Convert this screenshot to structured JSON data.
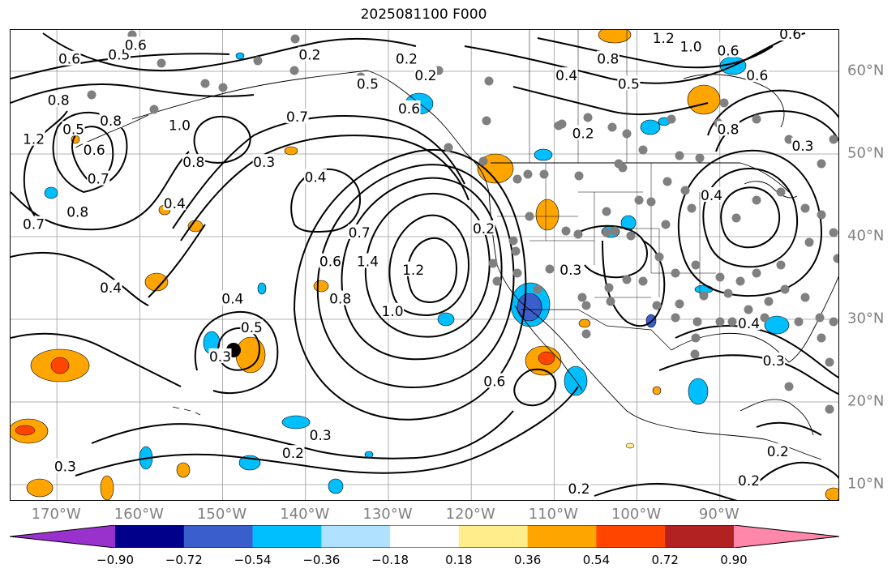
{
  "title": "2025081100 F000",
  "longitude_labels": [
    {
      "deg": -170,
      "text": "170°W"
    },
    {
      "deg": -160,
      "text": "160°W"
    },
    {
      "deg": -150,
      "text": "150°W"
    },
    {
      "deg": -140,
      "text": "140°W"
    },
    {
      "deg": -130,
      "text": "130°W"
    },
    {
      "deg": -120,
      "text": "120°W"
    },
    {
      "deg": -110,
      "text": "110°W"
    },
    {
      "deg": -100,
      "text": "100°W"
    },
    {
      "deg": -90,
      "text": "90°W"
    }
  ],
  "latitude_labels": [
    {
      "deg": 60,
      "text": "60°N"
    },
    {
      "deg": 50,
      "text": "50°N"
    },
    {
      "deg": 40,
      "text": "40°N"
    },
    {
      "deg": 30,
      "text": "30°N"
    },
    {
      "deg": 20,
      "text": "20°N"
    },
    {
      "deg": 10,
      "text": "10°N"
    }
  ],
  "colorbar": {
    "colors": [
      "#9932cc",
      "#00008b",
      "#3a5fcd",
      "#00bfff",
      "#b0e2ff",
      "#ffffff",
      "#ffec8b",
      "#ffa500",
      "#ff4500",
      "#b22222",
      "#ff88aa"
    ],
    "tick_labels": [
      "−0.90",
      "−0.72",
      "−0.54",
      "−0.36",
      "−0.18",
      "0.18",
      "0.36",
      "0.54",
      "0.72",
      "0.90"
    ]
  },
  "contour_labels": [
    {
      "text": "0.6",
      "lon": -168.5,
      "lat": 61.5
    },
    {
      "text": "0.5",
      "lon": -162.5,
      "lat": 62.0
    },
    {
      "text": "0.6",
      "lon": -160.5,
      "lat": 63.2
    },
    {
      "text": "0.8",
      "lon": -169.8,
      "lat": 56.5
    },
    {
      "text": "0.5",
      "lon": -168.0,
      "lat": 53.0
    },
    {
      "text": "0.6",
      "lon": -165.5,
      "lat": 50.5
    },
    {
      "text": "0.8",
      "lon": -163.5,
      "lat": 54.0
    },
    {
      "text": "1.2",
      "lon": -172.8,
      "lat": 51.8
    },
    {
      "text": "0.7",
      "lon": -165.0,
      "lat": 47.0
    },
    {
      "text": "0.8",
      "lon": -167.5,
      "lat": 43.0
    },
    {
      "text": "0.7",
      "lon": -172.8,
      "lat": 41.5
    },
    {
      "text": "1.0",
      "lon": -155.2,
      "lat": 53.5
    },
    {
      "text": "0.8",
      "lon": -153.5,
      "lat": 49.0
    },
    {
      "text": "0.4",
      "lon": -155.8,
      "lat": 44.0
    },
    {
      "text": "0.7",
      "lon": -141.0,
      "lat": 54.5
    },
    {
      "text": "0.3",
      "lon": -145.0,
      "lat": 49.0
    },
    {
      "text": "0.4",
      "lon": -138.8,
      "lat": 47.2
    },
    {
      "text": "0.2",
      "lon": -139.5,
      "lat": 62.0
    },
    {
      "text": "0.5",
      "lon": -132.5,
      "lat": 58.5
    },
    {
      "text": "0.6",
      "lon": -127.5,
      "lat": 55.5
    },
    {
      "text": "0.2",
      "lon": -127.8,
      "lat": 61.5
    },
    {
      "text": "0.2",
      "lon": -125.5,
      "lat": 59.5
    },
    {
      "text": "0.4",
      "lon": -163.5,
      "lat": 33.8
    },
    {
      "text": "0.4",
      "lon": -148.8,
      "lat": 32.5
    },
    {
      "text": "0.5",
      "lon": -146.5,
      "lat": 29.0
    },
    {
      "text": "0.3",
      "lon": -150.3,
      "lat": 25.5
    },
    {
      "text": "0.6",
      "lon": -137.0,
      "lat": 37.0
    },
    {
      "text": "0.8",
      "lon": -135.8,
      "lat": 32.5
    },
    {
      "text": "1.0",
      "lon": -129.5,
      "lat": 31.0
    },
    {
      "text": "1.4",
      "lon": -132.5,
      "lat": 37.0
    },
    {
      "text": "1.2",
      "lon": -127.0,
      "lat": 36.0
    },
    {
      "text": "0.7",
      "lon": -133.5,
      "lat": 40.5
    },
    {
      "text": "0.6",
      "lon": -117.2,
      "lat": 22.5
    },
    {
      "text": "0.3",
      "lon": -138.2,
      "lat": 16.0
    },
    {
      "text": "0.2",
      "lon": -141.5,
      "lat": 13.8
    },
    {
      "text": "0.2",
      "lon": -118.5,
      "lat": 41.0
    },
    {
      "text": "0.3",
      "lon": -108.0,
      "lat": 36.0
    },
    {
      "text": "0.4",
      "lon": -108.5,
      "lat": 59.5
    },
    {
      "text": "0.8",
      "lon": -103.5,
      "lat": 61.5
    },
    {
      "text": "0.5",
      "lon": -101.0,
      "lat": 58.5
    },
    {
      "text": "1.2",
      "lon": -96.8,
      "lat": 64.0
    },
    {
      "text": "1.0",
      "lon": -93.5,
      "lat": 63.0
    },
    {
      "text": "0.6",
      "lon": -89.0,
      "lat": 62.5
    },
    {
      "text": "0.6",
      "lon": -85.5,
      "lat": 59.5
    },
    {
      "text": "0.8",
      "lon": -89.0,
      "lat": 53.0
    },
    {
      "text": "0.2",
      "lon": -106.5,
      "lat": 52.5
    },
    {
      "text": "0.3",
      "lon": -80.0,
      "lat": 51.0
    },
    {
      "text": "0.4",
      "lon": -91.0,
      "lat": 45.0
    },
    {
      "text": "0.4",
      "lon": -86.5,
      "lat": 29.5
    },
    {
      "text": "0.3",
      "lon": -83.5,
      "lat": 25.0
    },
    {
      "text": "0.2",
      "lon": -83.0,
      "lat": 14.0
    },
    {
      "text": "0.2",
      "lon": -86.5,
      "lat": 10.5
    },
    {
      "text": "0.2",
      "lon": -107.0,
      "lat": 9.5
    },
    {
      "text": "0.3",
      "lon": -169.0,
      "lat": 12.2
    },
    {
      "text": "0.6",
      "lon": -81.5,
      "lat": 64.5
    }
  ]
}
